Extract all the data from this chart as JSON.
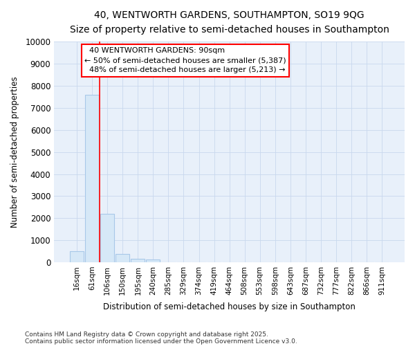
{
  "title": "40, WENTWORTH GARDENS, SOUTHAMPTON, SO19 9QG",
  "subtitle": "Size of property relative to semi-detached houses in Southampton",
  "xlabel": "Distribution of semi-detached houses by size in Southampton",
  "ylabel": "Number of semi-detached properties",
  "categories": [
    "16sqm",
    "61sqm",
    "106sqm",
    "150sqm",
    "195sqm",
    "240sqm",
    "285sqm",
    "329sqm",
    "374sqm",
    "419sqm",
    "464sqm",
    "508sqm",
    "553sqm",
    "598sqm",
    "643sqm",
    "687sqm",
    "732sqm",
    "777sqm",
    "822sqm",
    "866sqm",
    "911sqm"
  ],
  "values": [
    500,
    7600,
    2200,
    380,
    150,
    120,
    0,
    0,
    0,
    0,
    0,
    0,
    0,
    0,
    0,
    0,
    0,
    0,
    0,
    0,
    0
  ],
  "bar_color": "#d6e8f7",
  "bar_edge_color": "#a8c8e8",
  "grid_color": "#c8d8ee",
  "background_color": "#e8f0fa",
  "red_line_x": 1.5,
  "property_label": "40 WENTWORTH GARDENS: 90sqm",
  "smaller_pct": "50% of semi-detached houses are smaller (5,387)",
  "larger_pct": "48% of semi-detached houses are larger (5,213)",
  "footnote1": "Contains HM Land Registry data © Crown copyright and database right 2025.",
  "footnote2": "Contains public sector information licensed under the Open Government Licence v3.0.",
  "ylim": [
    0,
    10000
  ],
  "yticks": [
    0,
    1000,
    2000,
    3000,
    4000,
    5000,
    6000,
    7000,
    8000,
    9000,
    10000
  ]
}
